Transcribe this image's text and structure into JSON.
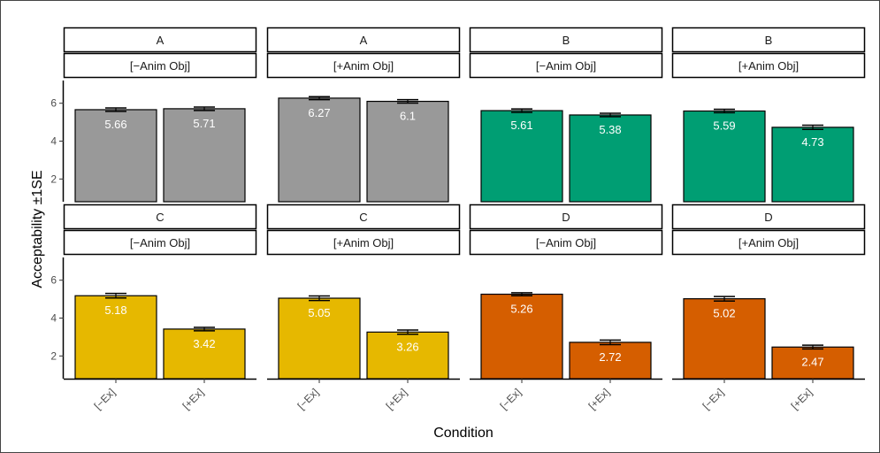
{
  "chart_data": {
    "type": "bar",
    "xlabel": "Condition",
    "ylabel": "Acceptability ±1SE",
    "categories": [
      "[−Ex]",
      "[+Ex]"
    ],
    "yticks": [
      2,
      4,
      6
    ],
    "ylim": [
      0.8,
      7.2
    ],
    "error_bars": "±1SE",
    "grid": false,
    "legend": "none",
    "panels": [
      {
        "group": "A",
        "animacy": "[−Anim Obj]",
        "color": "#999999",
        "values": [
          5.66,
          5.71
        ],
        "labels": [
          "5.66",
          "5.71"
        ],
        "se": [
          0.09,
          0.09
        ]
      },
      {
        "group": "A",
        "animacy": "[+Anim Obj]",
        "color": "#999999",
        "values": [
          6.27,
          6.1
        ],
        "labels": [
          "6.27",
          "6.1"
        ],
        "se": [
          0.08,
          0.09
        ]
      },
      {
        "group": "B",
        "animacy": "[−Anim Obj]",
        "color": "#009E73",
        "values": [
          5.61,
          5.38
        ],
        "labels": [
          "5.61",
          "5.38"
        ],
        "se": [
          0.09,
          0.09
        ]
      },
      {
        "group": "B",
        "animacy": "[+Anim Obj]",
        "color": "#009E73",
        "values": [
          5.59,
          4.73
        ],
        "labels": [
          "5.59",
          "4.73"
        ],
        "se": [
          0.09,
          0.11
        ]
      },
      {
        "group": "C",
        "animacy": "[−Anim Obj]",
        "color": "#E6B800",
        "values": [
          5.18,
          3.42
        ],
        "labels": [
          "5.18",
          "3.42"
        ],
        "se": [
          0.12,
          0.09
        ]
      },
      {
        "group": "C",
        "animacy": "[+Anim Obj]",
        "color": "#E6B800",
        "values": [
          5.05,
          3.26
        ],
        "labels": [
          "5.05",
          "3.26"
        ],
        "se": [
          0.12,
          0.11
        ]
      },
      {
        "group": "D",
        "animacy": "[−Anim Obj]",
        "color": "#D55E00",
        "values": [
          5.26,
          2.72
        ],
        "labels": [
          "5.26",
          "2.72"
        ],
        "se": [
          0.08,
          0.12
        ]
      },
      {
        "group": "D",
        "animacy": "[+Anim Obj]",
        "color": "#D55E00",
        "values": [
          5.02,
          2.47
        ],
        "labels": [
          "5.02",
          "2.47"
        ],
        "se": [
          0.12,
          0.1
        ]
      }
    ]
  }
}
